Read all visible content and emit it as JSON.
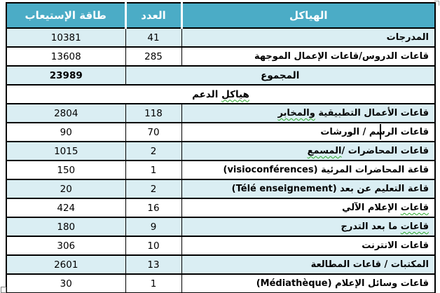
{
  "table": {
    "header": {
      "structures": "الهياكل",
      "count": "العدد",
      "capacity": "طاقة الإستيعاب"
    },
    "rows": [
      {
        "pre": "المدرجات",
        "wavy": "",
        "post": "",
        "count": "41",
        "capacity": "10381"
      },
      {
        "pre": "قاعات الدروس/قاعات الإعمال الموجهة",
        "wavy": "",
        "post": "",
        "count": "285",
        "capacity": "13608"
      },
      {
        "pre": "قاعات الأعمال التطبيقية ",
        "wavy": "والمخابر",
        "post": "",
        "count": "118",
        "capacity": "2804"
      },
      {
        "pre": "قاعات الرسم / الورشات",
        "wavy": "",
        "post": "",
        "count": "70",
        "capacity": "90"
      },
      {
        "pre": "قاعات المحاضرات /",
        "wavy": "المسمع",
        "post": "",
        "count": "2",
        "capacity": "1015"
      },
      {
        "pre": "قاعة المحاضرات المرئية (visioconférences)",
        "wavy": "",
        "post": "",
        "count": "1",
        "capacity": "150"
      },
      {
        "pre": "قاعة التعليم عن بعد (Télé enseignement)",
        "wavy": "",
        "post": "",
        "count": "2",
        "capacity": "20"
      },
      {
        "pre": "",
        "wavy": "قاعات",
        "post": " الإعلام الآلي",
        "count": "16",
        "capacity": "424"
      },
      {
        "pre": "",
        "wavy": "قاعات",
        "post": " ما بعد التدرج",
        "count": "9",
        "capacity": "180"
      },
      {
        "pre": "قاعات الانترنت",
        "wavy": "",
        "post": "",
        "count": "10",
        "capacity": "306"
      },
      {
        "pre": "المكتبات / قاعات المطالعة",
        "wavy": "",
        "post": "",
        "count": "13",
        "capacity": "2601"
      },
      {
        "pre": "قاعات وسائل الإعلام (Médiathèque)",
        "wavy": "",
        "post": "",
        "count": "1",
        "capacity": "30"
      }
    ],
    "total": {
      "label": "المجموع",
      "capacity": "23989"
    },
    "section": {
      "wavy": "هياكل",
      "post": " الدعم"
    },
    "colors": {
      "header_bg": "#4BACC6",
      "header_text": "#FFFFFF",
      "band_bg": "#DAEEF3",
      "row_bg": "#FFFFFF",
      "border": "#000000",
      "spellcheck_wavy": "#2EAA2E",
      "text": "#000000"
    }
  }
}
